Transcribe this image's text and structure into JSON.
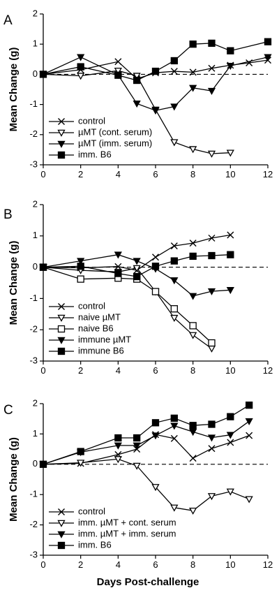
{
  "figure": {
    "shared_xlabel": "Days Post-challenge"
  },
  "chart_data": [
    {
      "panel": "A",
      "type": "line",
      "ylabel": "Mean Change (g)",
      "xlim": [
        0,
        12
      ],
      "ylim": [
        -3,
        2
      ],
      "xticks": [
        0,
        2,
        4,
        6,
        8,
        10,
        12
      ],
      "yticks": [
        -3,
        -2,
        -1,
        0,
        1,
        2
      ],
      "reference_line": 0,
      "legend_position": "bottom-left",
      "series": [
        {
          "name": "control",
          "marker": "x",
          "x": [
            0,
            2,
            4,
            5,
            6,
            7,
            8,
            9,
            10,
            11,
            12
          ],
          "y": [
            0,
            0.15,
            0.42,
            -0.15,
            0.05,
            0.1,
            0.07,
            0.2,
            0.3,
            0.38,
            0.47
          ]
        },
        {
          "name": "µMT (cont. serum)",
          "marker": "triangle-open",
          "x": [
            0,
            2,
            4,
            5,
            6,
            7,
            8,
            9,
            10
          ],
          "y": [
            0,
            -0.05,
            0.12,
            -0.05,
            -1.17,
            -2.25,
            -2.48,
            -2.63,
            -2.6
          ]
        },
        {
          "name": "µMT (imm. serum)",
          "marker": "triangle-filled",
          "x": [
            0,
            2,
            4,
            5,
            6,
            7,
            8,
            9,
            10,
            12
          ],
          "y": [
            0,
            0.57,
            -0.02,
            -0.97,
            -1.2,
            -1.07,
            -0.45,
            -0.55,
            0.28,
            0.57
          ]
        },
        {
          "name": "imm. B6",
          "marker": "square-filled",
          "x": [
            0,
            2,
            4,
            5,
            6,
            7,
            8,
            9,
            10,
            12
          ],
          "y": [
            0,
            0.25,
            -0.03,
            -0.2,
            0.1,
            0.45,
            1.0,
            1.03,
            0.78,
            1.08
          ]
        }
      ]
    },
    {
      "panel": "B",
      "type": "line",
      "ylabel": "Mean Change (g)",
      "xlim": [
        0,
        12
      ],
      "ylim": [
        -3,
        2
      ],
      "xticks": [
        0,
        2,
        4,
        6,
        8,
        10,
        12
      ],
      "yticks": [
        -3,
        -2,
        -1,
        0,
        1,
        2
      ],
      "reference_line": 0,
      "legend_position": "bottom-left",
      "series": [
        {
          "name": "control",
          "marker": "x",
          "x": [
            0,
            2,
            4,
            5,
            6,
            7,
            8,
            9,
            10
          ],
          "y": [
            0,
            -0.02,
            0.02,
            -0.1,
            0.32,
            0.68,
            0.77,
            0.93,
            1.03
          ]
        },
        {
          "name": "naive µMT",
          "marker": "triangle-open",
          "x": [
            0,
            2,
            4,
            5,
            6,
            7,
            8,
            9
          ],
          "y": [
            0,
            -0.1,
            -0.15,
            -0.03,
            -0.78,
            -1.62,
            -2.17,
            -2.6
          ]
        },
        {
          "name": "naive B6",
          "marker": "square-open",
          "x": [
            0,
            2,
            4,
            5,
            6,
            7,
            8,
            9
          ],
          "y": [
            0,
            -0.38,
            -0.35,
            -0.38,
            -0.78,
            -1.33,
            -1.87,
            -2.42
          ]
        },
        {
          "name": "immune µMT",
          "marker": "triangle-filled",
          "x": [
            0,
            2,
            4,
            5,
            6,
            7,
            8,
            9,
            10
          ],
          "y": [
            0,
            0.2,
            0.4,
            0.2,
            -0.05,
            -0.42,
            -0.92,
            -0.77,
            -0.73
          ]
        },
        {
          "name": "immune B6",
          "marker": "square-filled",
          "x": [
            0,
            2,
            4,
            5,
            6,
            7,
            8,
            9,
            10
          ],
          "y": [
            0,
            0.03,
            -0.2,
            -0.3,
            0.03,
            0.2,
            0.35,
            0.37,
            0.4
          ]
        }
      ]
    },
    {
      "panel": "C",
      "type": "line",
      "ylabel": "Mean Change (g)",
      "xlabel": "Days Post-challenge",
      "xlim": [
        0,
        12
      ],
      "ylim": [
        -3,
        2
      ],
      "xticks": [
        0,
        2,
        4,
        6,
        8,
        10,
        12
      ],
      "yticks": [
        -3,
        -2,
        -1,
        0,
        1,
        2
      ],
      "reference_line": 0,
      "legend_position": "bottom-left",
      "series": [
        {
          "name": "control",
          "marker": "x",
          "x": [
            0,
            2,
            4,
            5,
            6,
            7,
            8,
            9,
            10,
            11
          ],
          "y": [
            0,
            0.03,
            0.32,
            0.5,
            0.98,
            0.85,
            0.2,
            0.52,
            0.72,
            0.95
          ]
        },
        {
          "name": "imm. µMT + cont. serum",
          "marker": "triangle-open",
          "x": [
            0,
            2,
            4,
            5,
            6,
            7,
            8,
            9,
            10,
            11
          ],
          "y": [
            0,
            0.05,
            0.17,
            -0.05,
            -0.75,
            -1.43,
            -1.53,
            -1.05,
            -0.9,
            -1.15
          ]
        },
        {
          "name": "imm. µMT + imm. serum",
          "marker": "triangle-filled",
          "x": [
            0,
            2,
            4,
            5,
            6,
            7,
            8,
            9,
            10,
            11
          ],
          "y": [
            0,
            0.4,
            0.62,
            0.62,
            0.95,
            1.27,
            1.07,
            0.88,
            0.97,
            1.42
          ]
        },
        {
          "name": "imm. B6",
          "marker": "square-filled",
          "x": [
            0,
            2,
            4,
            5,
            6,
            7,
            8,
            9,
            10,
            11
          ],
          "y": [
            0,
            0.42,
            0.87,
            0.87,
            1.37,
            1.52,
            1.28,
            1.32,
            1.57,
            1.95
          ]
        }
      ]
    }
  ]
}
